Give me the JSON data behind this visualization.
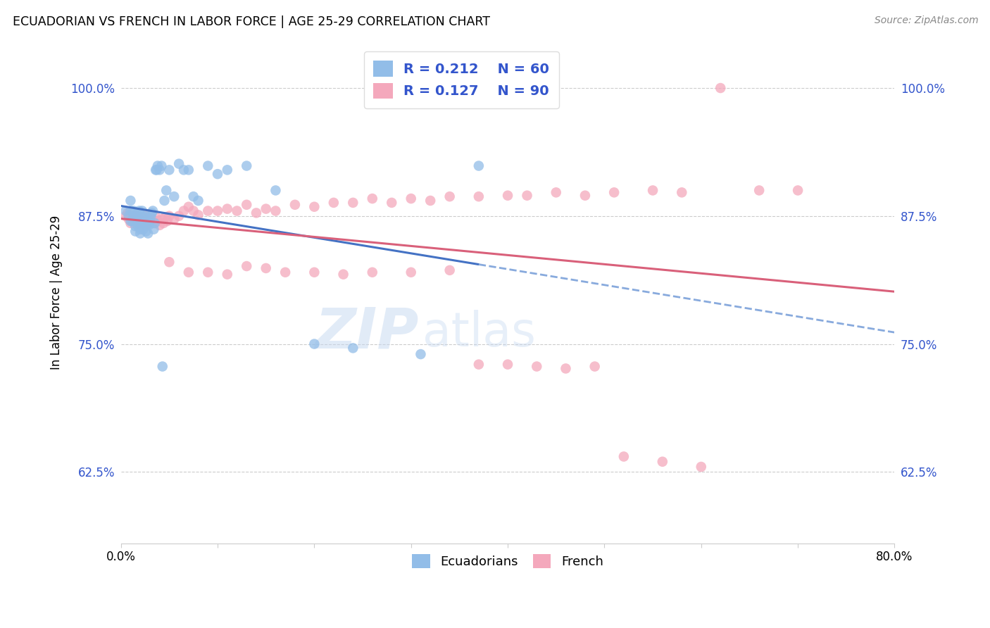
{
  "title": "ECUADORIAN VS FRENCH IN LABOR FORCE | AGE 25-29 CORRELATION CHART",
  "source": "Source: ZipAtlas.com",
  "ylabel": "In Labor Force | Age 25-29",
  "ytick_labels": [
    "62.5%",
    "75.0%",
    "87.5%",
    "100.0%"
  ],
  "ytick_values": [
    0.625,
    0.75,
    0.875,
    1.0
  ],
  "xlim": [
    0.0,
    0.8
  ],
  "ylim": [
    0.555,
    1.045
  ],
  "watermark_zip": "ZIP",
  "watermark_atlas": "atlas",
  "blue_color": "#92BDE8",
  "pink_color": "#F4A8BC",
  "line_blue": "#4472C4",
  "line_blue_dash": "#88AADD",
  "line_pink": "#D9607A",
  "legend_text_color": "#3355CC",
  "ecuadorians_x": [
    0.005,
    0.008,
    0.01,
    0.01,
    0.01,
    0.012,
    0.013,
    0.013,
    0.015,
    0.015,
    0.015,
    0.016,
    0.017,
    0.018,
    0.018,
    0.019,
    0.02,
    0.02,
    0.021,
    0.022,
    0.022,
    0.022,
    0.023,
    0.024,
    0.025,
    0.026,
    0.027,
    0.027,
    0.028,
    0.029,
    0.03,
    0.031,
    0.032,
    0.033,
    0.034,
    0.035,
    0.036,
    0.037,
    0.038,
    0.04,
    0.042,
    0.043,
    0.045,
    0.047,
    0.05,
    0.055,
    0.06,
    0.065,
    0.07,
    0.075,
    0.08,
    0.09,
    0.1,
    0.11,
    0.13,
    0.16,
    0.2,
    0.24,
    0.31,
    0.37
  ],
  "ecuadorians_y": [
    0.88,
    0.875,
    0.87,
    0.88,
    0.89,
    0.87,
    0.875,
    0.88,
    0.86,
    0.865,
    0.87,
    0.875,
    0.878,
    0.865,
    0.872,
    0.88,
    0.858,
    0.862,
    0.868,
    0.87,
    0.875,
    0.88,
    0.862,
    0.868,
    0.874,
    0.86,
    0.866,
    0.872,
    0.858,
    0.866,
    0.87,
    0.875,
    0.878,
    0.88,
    0.862,
    0.868,
    0.92,
    0.92,
    0.924,
    0.92,
    0.924,
    0.728,
    0.89,
    0.9,
    0.92,
    0.894,
    0.926,
    0.92,
    0.92,
    0.894,
    0.89,
    0.924,
    0.916,
    0.92,
    0.924,
    0.9,
    0.75,
    0.746,
    0.74,
    0.924
  ],
  "french_x": [
    0.005,
    0.007,
    0.008,
    0.009,
    0.01,
    0.01,
    0.011,
    0.012,
    0.013,
    0.014,
    0.015,
    0.016,
    0.017,
    0.018,
    0.019,
    0.02,
    0.021,
    0.022,
    0.023,
    0.024,
    0.025,
    0.026,
    0.027,
    0.028,
    0.029,
    0.03,
    0.032,
    0.034,
    0.036,
    0.038,
    0.04,
    0.042,
    0.044,
    0.046,
    0.048,
    0.05,
    0.055,
    0.06,
    0.065,
    0.07,
    0.075,
    0.08,
    0.09,
    0.1,
    0.11,
    0.12,
    0.13,
    0.14,
    0.15,
    0.16,
    0.18,
    0.2,
    0.22,
    0.24,
    0.26,
    0.28,
    0.3,
    0.32,
    0.34,
    0.37,
    0.4,
    0.42,
    0.45,
    0.48,
    0.51,
    0.55,
    0.58,
    0.62,
    0.66,
    0.7,
    0.05,
    0.07,
    0.09,
    0.11,
    0.13,
    0.15,
    0.17,
    0.2,
    0.23,
    0.26,
    0.3,
    0.34,
    0.37,
    0.4,
    0.43,
    0.46,
    0.49,
    0.52,
    0.56,
    0.6
  ],
  "french_y": [
    0.875,
    0.878,
    0.872,
    0.876,
    0.868,
    0.874,
    0.87,
    0.872,
    0.875,
    0.868,
    0.87,
    0.875,
    0.872,
    0.868,
    0.874,
    0.866,
    0.87,
    0.874,
    0.868,
    0.872,
    0.875,
    0.866,
    0.872,
    0.868,
    0.874,
    0.87,
    0.872,
    0.868,
    0.874,
    0.87,
    0.866,
    0.872,
    0.868,
    0.874,
    0.87,
    0.875,
    0.872,
    0.875,
    0.88,
    0.884,
    0.88,
    0.876,
    0.88,
    0.88,
    0.882,
    0.88,
    0.886,
    0.878,
    0.882,
    0.88,
    0.886,
    0.884,
    0.888,
    0.888,
    0.892,
    0.888,
    0.892,
    0.89,
    0.894,
    0.894,
    0.895,
    0.895,
    0.898,
    0.895,
    0.898,
    0.9,
    0.898,
    1.0,
    0.9,
    0.9,
    0.83,
    0.82,
    0.82,
    0.818,
    0.826,
    0.824,
    0.82,
    0.82,
    0.818,
    0.82,
    0.82,
    0.822,
    0.73,
    0.73,
    0.728,
    0.726,
    0.728,
    0.64,
    0.635,
    0.63
  ]
}
